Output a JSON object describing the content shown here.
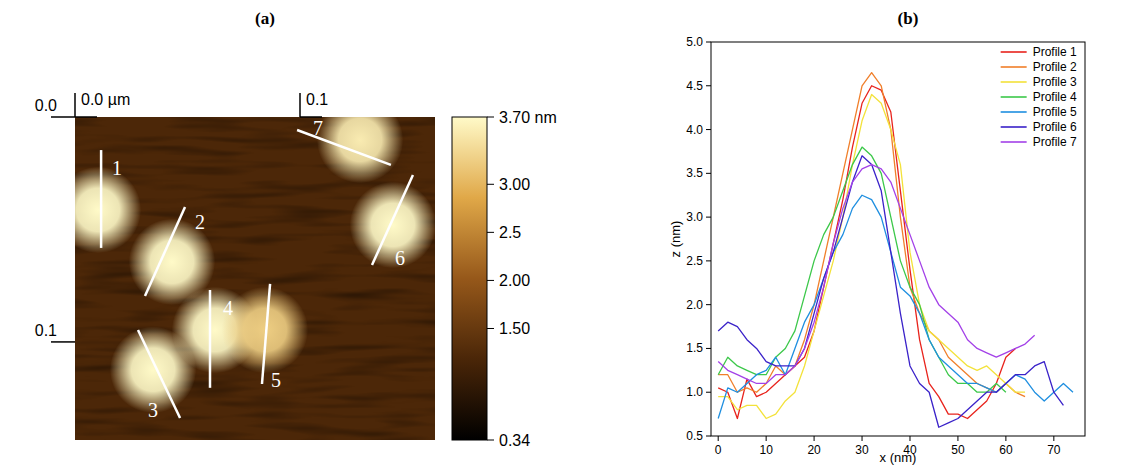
{
  "chart_data": [
    {
      "type": "image",
      "title": "(a)",
      "xlim": [
        0,
        0.16
      ],
      "ylim": [
        0,
        0.1436
      ],
      "xticks": [
        {
          "value": 0,
          "label": "0.0 µm"
        },
        0.1
      ],
      "yticks": [
        {
          "value": 0,
          "label": "0.0"
        },
        0.1
      ],
      "substrate_height": 1.2,
      "particles": [
        {
          "x": 0.0102,
          "y": 0.0413,
          "radius": 0.012,
          "height": 4.5
        },
        {
          "x": 0.0431,
          "y": 0.0644,
          "radius": 0.012,
          "height": 4.65
        },
        {
          "x": 0.0347,
          "y": 0.1124,
          "radius": 0.012,
          "height": 4.4
        },
        {
          "x": 0.0622,
          "y": 0.0947,
          "radius": 0.012,
          "height": 3.8
        },
        {
          "x": 0.0844,
          "y": 0.0947,
          "radius": 0.012,
          "height": 3.25
        },
        {
          "x": 0.1413,
          "y": 0.048,
          "radius": 0.012,
          "height": 3.7
        },
        {
          "x": 0.1267,
          "y": 0.0102,
          "radius": 0.012,
          "height": 3.55
        }
      ],
      "profiles": [
        {
          "label": "1",
          "x": [
            0.0116,
            0.0116
          ],
          "y": [
            0.0147,
            0.0582
          ],
          "label_at": [
            0.0187,
            0.0227
          ]
        },
        {
          "label": "2",
          "x": [
            0.0489,
            0.0311
          ],
          "y": [
            0.04,
            0.0796
          ],
          "label_at": [
            0.0556,
            0.0467
          ]
        },
        {
          "label": "3",
          "x": [
            0.028,
            0.0467
          ],
          "y": [
            0.0947,
            0.1338
          ],
          "label_at": [
            0.0347,
            0.1302
          ]
        },
        {
          "label": "4",
          "x": [
            0.06,
            0.06
          ],
          "y": [
            0.0769,
            0.1204
          ],
          "label_at": [
            0.068,
            0.0849
          ]
        },
        {
          "label": "5",
          "x": [
            0.0867,
            0.0831
          ],
          "y": [
            0.0742,
            0.1187
          ],
          "label_at": [
            0.0893,
            0.1169
          ]
        },
        {
          "label": "6",
          "x": [
            0.1502,
            0.132
          ],
          "y": [
            0.0258,
            0.0658
          ],
          "label_at": [
            0.1444,
            0.0627
          ]
        },
        {
          "label": "7",
          "x": [
            0.0987,
            0.1404
          ],
          "y": [
            0.0058,
            0.0213
          ],
          "label_at": [
            0.108,
            0.0049
          ]
        }
      ],
      "colorbar": {
        "range": [
          0.34,
          3.7
        ],
        "ticks": [
          {
            "value": 3.7,
            "label": "3.70 nm"
          },
          {
            "value": 3,
            "label": "3.00"
          },
          2.5,
          {
            "value": 2,
            "label": "2.00"
          },
          {
            "value": 1.5,
            "label": "1.50"
          },
          0.34
        ]
      }
    },
    {
      "type": "line",
      "title": "(b)",
      "xlabel": "x (nm)",
      "ylabel": "z (nm)",
      "xlim": [
        -1.5,
        76.5
      ],
      "ylim": [
        0.5,
        5.0
      ],
      "xticks": [
        0,
        10,
        20,
        30,
        40,
        50,
        60,
        70
      ],
      "yticks": [
        0.5,
        {
          "value": 1,
          "label": "1.0"
        },
        1.5,
        {
          "value": 2,
          "label": "2.0"
        },
        2.5,
        {
          "value": 3,
          "label": "3.0"
        },
        3.5,
        {
          "value": 4,
          "label": "4.0"
        },
        4.5,
        {
          "value": 5,
          "label": "5.0"
        }
      ],
      "grid": false,
      "legend": "upper right",
      "x": [
        0,
        2,
        4,
        6,
        8,
        10,
        12,
        14,
        16,
        18,
        20,
        22,
        24,
        26,
        28,
        30,
        32,
        34,
        36,
        38,
        40,
        42,
        44,
        46,
        48,
        50,
        52,
        54,
        56,
        58,
        60,
        62,
        64,
        66,
        68,
        70,
        72,
        74
      ],
      "series": [
        {
          "name": "Profile 1",
          "color": "#e8231c",
          "values": [
            1.05,
            1.0,
            0.7,
            1.15,
            0.95,
            1.0,
            1.1,
            1.2,
            1.3,
            1.4,
            1.7,
            2.2,
            2.7,
            3.2,
            3.8,
            4.3,
            4.5,
            4.45,
            4.2,
            3.3,
            2.4,
            1.6,
            1.1,
            0.95,
            0.75,
            0.75,
            0.7,
            0.8,
            0.9,
            1.1,
            1.4,
            1.5,
            null,
            null,
            null,
            null,
            null,
            null
          ]
        },
        {
          "name": "Profile 2",
          "color": "#f07f2a",
          "values": [
            1.2,
            1.2,
            1.0,
            1.05,
            1.0,
            1.1,
            1.3,
            1.2,
            1.3,
            1.6,
            2.0,
            2.5,
            3.0,
            3.5,
            4.0,
            4.5,
            4.65,
            4.5,
            4.0,
            3.0,
            2.2,
            1.9,
            1.7,
            1.6,
            1.4,
            1.3,
            1.2,
            1.1,
            1.05,
            1.0,
            1.1,
            1.0,
            0.95,
            null,
            null,
            null,
            null,
            null
          ]
        },
        {
          "name": "Profile 3",
          "color": "#f3e23a",
          "values": [
            0.95,
            0.95,
            0.8,
            0.85,
            0.85,
            0.7,
            0.75,
            0.9,
            1.0,
            1.3,
            1.7,
            2.1,
            2.5,
            3.0,
            3.6,
            4.1,
            4.4,
            4.3,
            4.0,
            3.6,
            2.6,
            2.0,
            1.7,
            1.6,
            1.5,
            1.4,
            1.3,
            1.25,
            1.3,
            1.2,
            1.1,
            1.0,
            1.0,
            null,
            null,
            null,
            null,
            null
          ]
        },
        {
          "name": "Profile 4",
          "color": "#3cc84a",
          "values": [
            1.2,
            1.4,
            1.3,
            1.25,
            1.2,
            1.2,
            1.4,
            1.5,
            1.7,
            2.1,
            2.5,
            2.8,
            3.0,
            3.3,
            3.6,
            3.8,
            3.7,
            3.5,
            3.0,
            2.5,
            2.2,
            2.0,
            1.6,
            1.4,
            1.2,
            1.1,
            1.1,
            1.0,
            1.0,
            1.1,
            1.0,
            null,
            null,
            null,
            null,
            null,
            null,
            null
          ]
        },
        {
          "name": "Profile 5",
          "color": "#1f8fe0",
          "values": [
            0.7,
            1.05,
            1.0,
            1.1,
            1.2,
            1.25,
            1.4,
            1.2,
            1.5,
            1.8,
            2.0,
            2.3,
            2.6,
            2.8,
            3.1,
            3.25,
            3.2,
            3.0,
            2.6,
            2.2,
            2.1,
            1.9,
            1.6,
            1.4,
            1.3,
            1.2,
            1.1,
            1.1,
            1.05,
            1.0,
            1.1,
            1.2,
            1.15,
            1.0,
            0.9,
            1.0,
            1.1,
            1.0
          ]
        },
        {
          "name": "Profile 6",
          "color": "#3a22c9",
          "values": [
            1.7,
            1.8,
            1.75,
            1.6,
            1.5,
            1.35,
            1.3,
            1.3,
            1.3,
            1.5,
            1.9,
            2.3,
            2.6,
            3.0,
            3.4,
            3.7,
            3.6,
            3.3,
            2.6,
            1.9,
            1.3,
            1.1,
            1.0,
            0.6,
            0.65,
            0.7,
            0.8,
            0.9,
            1.0,
            1.0,
            1.1,
            1.2,
            1.2,
            1.3,
            1.35,
            1.0,
            0.85,
            null
          ]
        },
        {
          "name": "Profile 7",
          "color": "#a341e8",
          "values": [
            1.35,
            1.25,
            1.2,
            1.15,
            1.1,
            1.1,
            1.2,
            1.2,
            1.3,
            1.5,
            1.8,
            2.2,
            2.7,
            3.1,
            3.4,
            3.55,
            3.6,
            3.55,
            3.4,
            3.1,
            2.8,
            2.5,
            2.2,
            2.0,
            1.9,
            1.8,
            1.6,
            1.5,
            1.45,
            1.4,
            1.45,
            1.5,
            1.55,
            1.65,
            null,
            null,
            null,
            null
          ]
        }
      ]
    }
  ]
}
